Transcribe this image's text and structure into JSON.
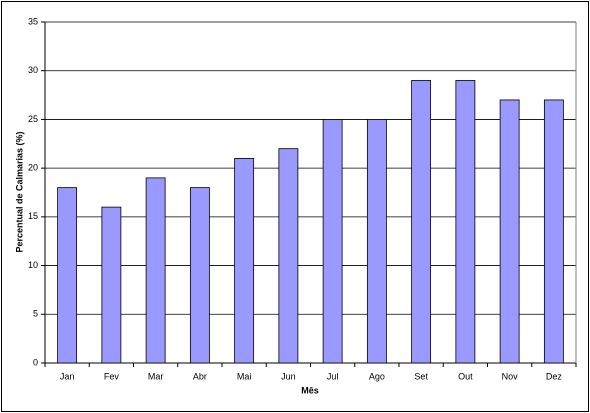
{
  "chart_data": {
    "type": "bar",
    "x_label": "Mês",
    "y_label": "Percentual de Calmarias (%)",
    "categories": [
      "Jan",
      "Fev",
      "Mar",
      "Abr",
      "Mai",
      "Jun",
      "Jul",
      "Ago",
      "Set",
      "Out",
      "Nov",
      "Dez"
    ],
    "values": [
      18,
      16,
      19,
      18,
      21,
      22,
      25,
      25,
      29,
      29,
      27,
      27
    ],
    "color": "#9999ff",
    "ylim": [
      0,
      35
    ],
    "yticks": [
      0,
      5,
      10,
      15,
      20,
      25,
      30,
      35
    ],
    "grid": true
  }
}
